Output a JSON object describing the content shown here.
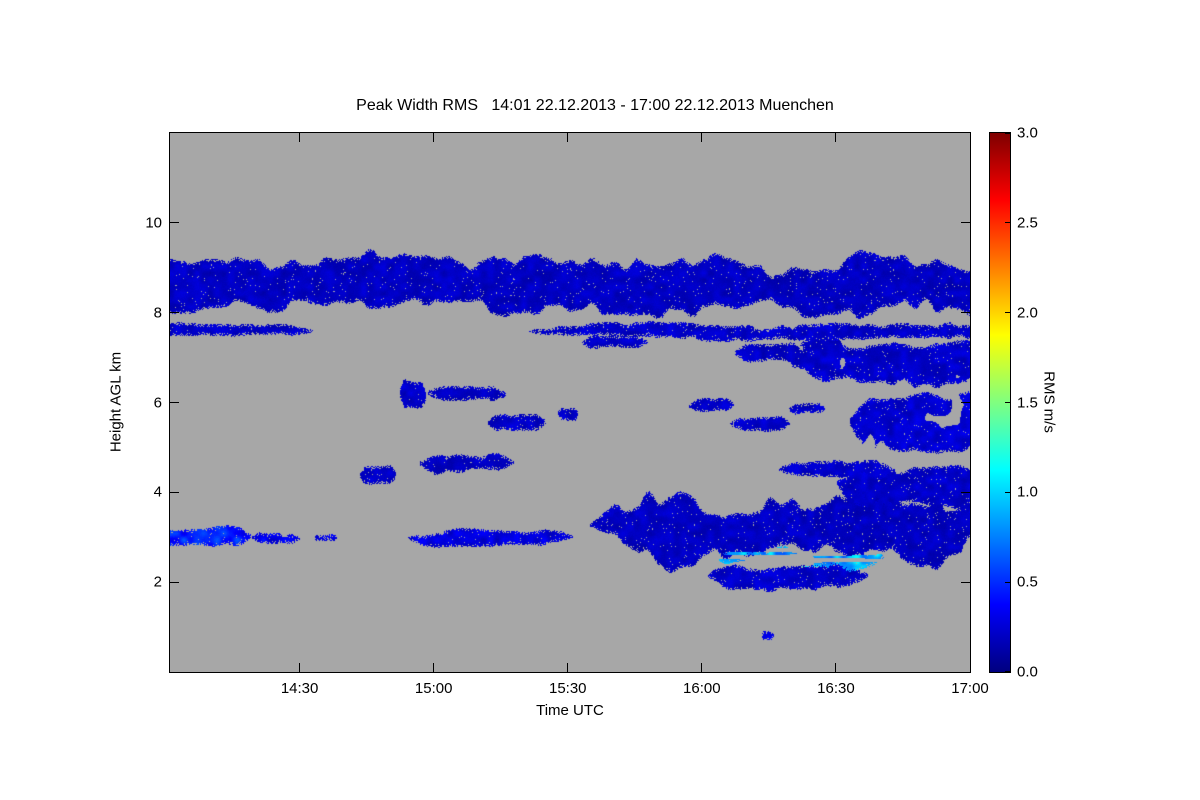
{
  "page": {
    "background": "#FFFFFF"
  },
  "chart_data": {
    "type": "heatmap",
    "title": "Peak Width RMS   14:01 22.12.2013 - 17:00 22.12.2013 Muenchen",
    "xlabel": "Time UTC",
    "ylabel": "Height AGL km",
    "x_axis": {
      "start_hour": 14.0167,
      "end_hour": 17.0,
      "ticks": [
        {
          "hour": 14.5,
          "label": "14:30"
        },
        {
          "hour": 15.0,
          "label": "15:00"
        },
        {
          "hour": 15.5,
          "label": "15:30"
        },
        {
          "hour": 16.0,
          "label": "16:00"
        },
        {
          "hour": 16.5,
          "label": "16:30"
        },
        {
          "hour": 17.0,
          "label": "17:00"
        }
      ]
    },
    "y_axis": {
      "min_km": 0,
      "max_km": 12,
      "ticks": [
        {
          "km": 2,
          "label": "2"
        },
        {
          "km": 4,
          "label": "4"
        },
        {
          "km": 6,
          "label": "6"
        },
        {
          "km": 8,
          "label": "8"
        },
        {
          "km": 10,
          "label": "10"
        }
      ]
    },
    "no_data_color": "#A7A7A7",
    "colorbar": {
      "label": "RMS m/s",
      "min": 0.0,
      "max": 3.0,
      "tick_labels": [
        "0.0",
        "0.5",
        "1.0",
        "1.5",
        "2.0",
        "2.5",
        "3.0"
      ],
      "stops": [
        {
          "pos": 0.0,
          "color": "#00007F"
        },
        {
          "pos": 0.125,
          "color": "#0000FF"
        },
        {
          "pos": 0.375,
          "color": "#00FFFF"
        },
        {
          "pos": 0.625,
          "color": "#FFFF00"
        },
        {
          "pos": 0.875,
          "color": "#FF0000"
        },
        {
          "pos": 1.0,
          "color": "#7F0000"
        }
      ]
    },
    "regions_note": "Observed echo regions: t0/t1 decimal hours UTC, h0/h1 km AGL, rms typical value m/s (dark blue ~0.2, light blue/cyan ~0.85); background is no-data gray",
    "regions": [
      {
        "t0": 14.0167,
        "t1": 17.0,
        "h0": 7.75,
        "h1": 9.5,
        "rms": 0.18,
        "jitter": 0.4
      },
      {
        "t0": 14.0167,
        "t1": 14.55,
        "h0": 7.45,
        "h1": 7.8,
        "rms": 0.2,
        "jitter": 0.3
      },
      {
        "t0": 15.35,
        "t1": 17.0,
        "h0": 7.3,
        "h1": 7.85,
        "rms": 0.2,
        "jitter": 0.45
      },
      {
        "t0": 16.3,
        "t1": 17.0,
        "h0": 6.3,
        "h1": 7.6,
        "rms": 0.2,
        "jitter": 0.4,
        "fill": 0.9
      },
      {
        "t0": 16.12,
        "t1": 16.38,
        "h0": 6.85,
        "h1": 7.45,
        "rms": 0.2
      },
      {
        "t0": 15.55,
        "t1": 15.8,
        "h0": 7.15,
        "h1": 7.55,
        "rms": 0.2
      },
      {
        "t0": 14.87,
        "t1": 14.97,
        "h0": 5.8,
        "h1": 6.55,
        "rms": 0.2
      },
      {
        "t0": 14.97,
        "t1": 15.27,
        "h0": 5.95,
        "h1": 6.45,
        "rms": 0.18
      },
      {
        "t0": 15.2,
        "t1": 15.42,
        "h0": 5.35,
        "h1": 5.85,
        "rms": 0.2
      },
      {
        "t0": 15.46,
        "t1": 15.54,
        "h0": 5.5,
        "h1": 6.0,
        "rms": 0.22
      },
      {
        "t0": 15.95,
        "t1": 16.12,
        "h0": 5.75,
        "h1": 6.15,
        "rms": 0.2
      },
      {
        "t0": 16.1,
        "t1": 16.33,
        "h0": 5.35,
        "h1": 5.72,
        "rms": 0.2
      },
      {
        "t0": 16.32,
        "t1": 16.46,
        "h0": 5.7,
        "h1": 6.05,
        "rms": 0.2
      },
      {
        "t0": 14.72,
        "t1": 14.86,
        "h0": 4.15,
        "h1": 4.68,
        "rms": 0.2
      },
      {
        "t0": 14.94,
        "t1": 15.3,
        "h0": 4.35,
        "h1": 5.0,
        "rms": 0.18
      },
      {
        "t0": 14.0167,
        "t1": 14.32,
        "h0": 2.75,
        "h1": 3.35,
        "rms": 0.45
      },
      {
        "t0": 14.32,
        "t1": 14.5,
        "h0": 2.85,
        "h1": 3.15,
        "rms": 0.3,
        "fill": 0.85
      },
      {
        "t0": 14.55,
        "t1": 14.64,
        "h0": 2.9,
        "h1": 3.12,
        "rms": 0.3
      },
      {
        "t0": 14.9,
        "t1": 15.52,
        "h0": 2.75,
        "h1": 3.22,
        "rms": 0.25,
        "fill": 0.85
      },
      {
        "t0": 15.58,
        "t1": 17.0,
        "h0": 2.1,
        "h1": 4.35,
        "rms": 0.18,
        "jitter": 0.45
      },
      {
        "t0": 16.02,
        "t1": 16.62,
        "h0": 1.72,
        "h1": 2.5,
        "rms": 0.2
      },
      {
        "t0": 16.05,
        "t1": 16.68,
        "h0": 2.1,
        "h1": 2.9,
        "rms": 0.85,
        "fill": 0.35,
        "jitter": 0.5,
        "streak": true
      },
      {
        "t0": 16.28,
        "t1": 16.72,
        "h0": 4.2,
        "h1": 4.8,
        "rms": 0.2
      },
      {
        "t0": 16.5,
        "t1": 17.0,
        "h0": 3.5,
        "h1": 4.7,
        "rms": 0.2
      },
      {
        "t0": 16.55,
        "t1": 17.0,
        "h0": 4.6,
        "h1": 6.35,
        "rms": 0.22,
        "fill": 0.8
      },
      {
        "t0": 16.22,
        "t1": 16.27,
        "h0": 0.72,
        "h1": 0.92,
        "rms": 0.3
      }
    ]
  }
}
